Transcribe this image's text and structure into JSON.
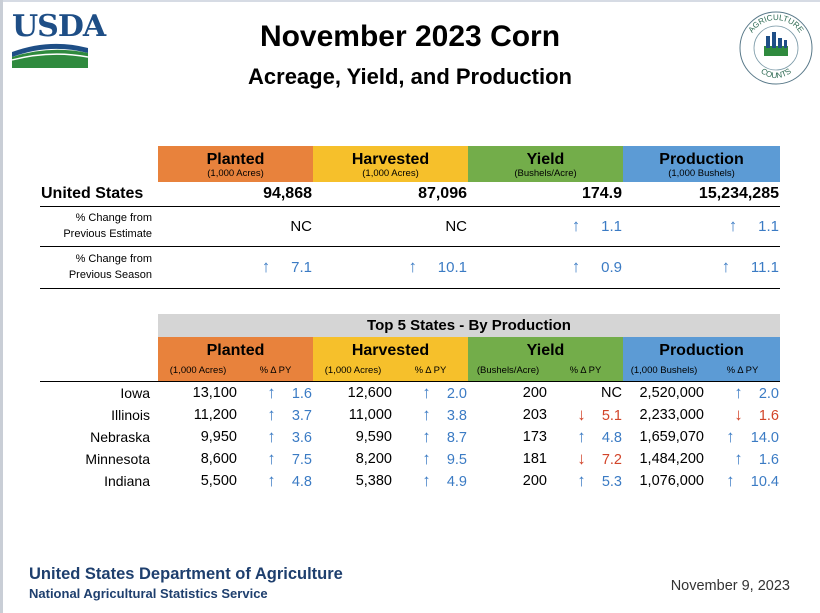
{
  "header": {
    "title": "November 2023 Corn",
    "subtitle": "Acreage, Yield, and Production",
    "logo_text": "USDA",
    "seal_text_top": "AGRICULTURE",
    "seal_text_bottom": "COUNTS"
  },
  "summary": {
    "columns": [
      {
        "name": "Planted",
        "unit": "(1,000 Acres)",
        "color": "#e8823c"
      },
      {
        "name": "Harvested",
        "unit": "(1,000 Acres)",
        "color": "#f6c02b"
      },
      {
        "name": "Yield",
        "unit": "(Bushels/Acre)",
        "color": "#73ad4a"
      },
      {
        "name": "Production",
        "unit": "(1,000 Bushels)",
        "color": "#5c9bd5"
      }
    ],
    "us_label": "United States",
    "us_values": [
      "94,868",
      "87,096",
      "174.9",
      "15,234,285"
    ],
    "prev_est_label_1": "% Change from",
    "prev_est_label_2": "Previous Estimate",
    "prev_est": [
      "NC",
      "NC",
      "1.1",
      "1.1"
    ],
    "prev_season_label_1": "% Change from",
    "prev_season_label_2": "Previous Season",
    "prev_season": [
      "7.1",
      "10.1",
      "0.9",
      "11.1"
    ]
  },
  "top5": {
    "title": "Top 5 States - By Production",
    "groups": [
      "Planted",
      "Harvested",
      "Yield",
      "Production"
    ],
    "subheaders": [
      "(1,000 Acres)",
      "% Δ PY",
      "(1,000 Acres)",
      "% Δ PY",
      "(Bushels/Acre)",
      "% Δ PY",
      "(1,000 Bushels)",
      "% Δ PY"
    ],
    "rows": [
      {
        "state": "Iowa",
        "planted": "13,100",
        "planted_pct": "1.6",
        "harvested": "12,600",
        "harvested_pct": "2.0",
        "yield": "200",
        "yield_pct": "NC",
        "production": "2,520,000",
        "production_pct": "2.0"
      },
      {
        "state": "Illinois",
        "planted": "11,200",
        "planted_pct": "3.7",
        "harvested": "11,000",
        "harvested_pct": "3.8",
        "yield": "203",
        "yield_pct": "5.1",
        "production": "2,233,000",
        "production_pct": "1.6"
      },
      {
        "state": "Nebraska",
        "planted": "9,950",
        "planted_pct": "3.6",
        "harvested": "9,590",
        "harvested_pct": "8.7",
        "yield": "173",
        "yield_pct": "4.8",
        "production": "1,659,070",
        "production_pct": "14.0"
      },
      {
        "state": "Minnesota",
        "planted": "8,600",
        "planted_pct": "7.5",
        "harvested": "8,200",
        "harvested_pct": "9.5",
        "yield": "181",
        "yield_pct": "7.2",
        "production": "1,484,200",
        "production_pct": "1.6"
      },
      {
        "state": "Indiana",
        "planted": "5,500",
        "planted_pct": "4.8",
        "harvested": "5,380",
        "harvested_pct": "4.9",
        "yield": "200",
        "yield_pct": "5.3",
        "production": "1,076,000",
        "production_pct": "10.4"
      }
    ]
  },
  "footer": {
    "dept": "United States Department of Agriculture",
    "service": "National Agricultural Statistics Service",
    "date": "November 9, 2023"
  },
  "colors": {
    "up": "#3b7bc4",
    "down": "#d2452a"
  }
}
